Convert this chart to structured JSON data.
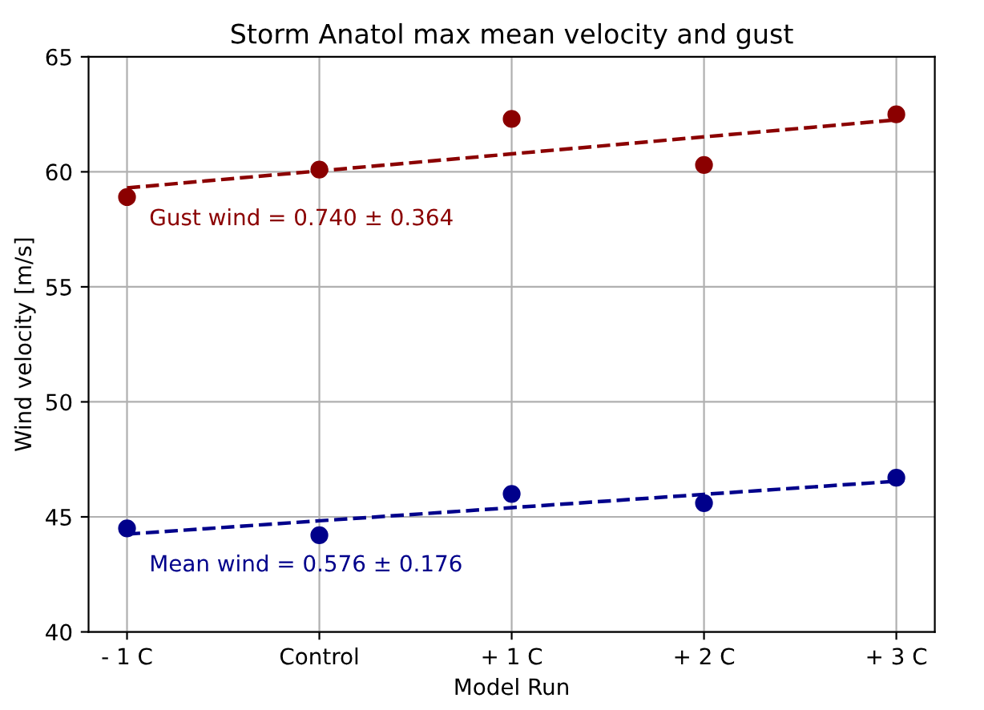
{
  "chart_data": {
    "type": "scatter",
    "title": "Storm Anatol max mean velocity and gust",
    "xlabel": "Model Run",
    "ylabel": "Wind velocity [m/s]",
    "categories": [
      "- 1 C",
      "Control",
      "+ 1 C",
      "+ 2 C",
      "+ 3 C"
    ],
    "series": [
      {
        "color": "#8b0000",
        "marker": "circle",
        "values": [
          58.9,
          60.1,
          62.3,
          60.3,
          62.5
        ]
      },
      {
        "type": "line",
        "name": "Gust wind = 0.740 ± 0.364",
        "color": "#8b0000",
        "line_style": "dashed",
        "values": [
          59.3,
          60.04,
          60.78,
          61.52,
          62.26
        ]
      },
      {
        "color": "#00008b",
        "marker": "circle",
        "values": [
          44.5,
          44.2,
          46.0,
          45.6,
          46.7
        ]
      },
      {
        "type": "line",
        "name": "Mean wind = 0.576 ± 0.176",
        "color": "#00008b",
        "line_style": "dashed",
        "values": [
          44.25,
          44.83,
          45.4,
          45.98,
          46.55
        ]
      }
    ],
    "ylim": [
      40,
      65
    ],
    "yticks": [
      40,
      45,
      50,
      55,
      60,
      65
    ],
    "grid": true,
    "legend": false
  }
}
